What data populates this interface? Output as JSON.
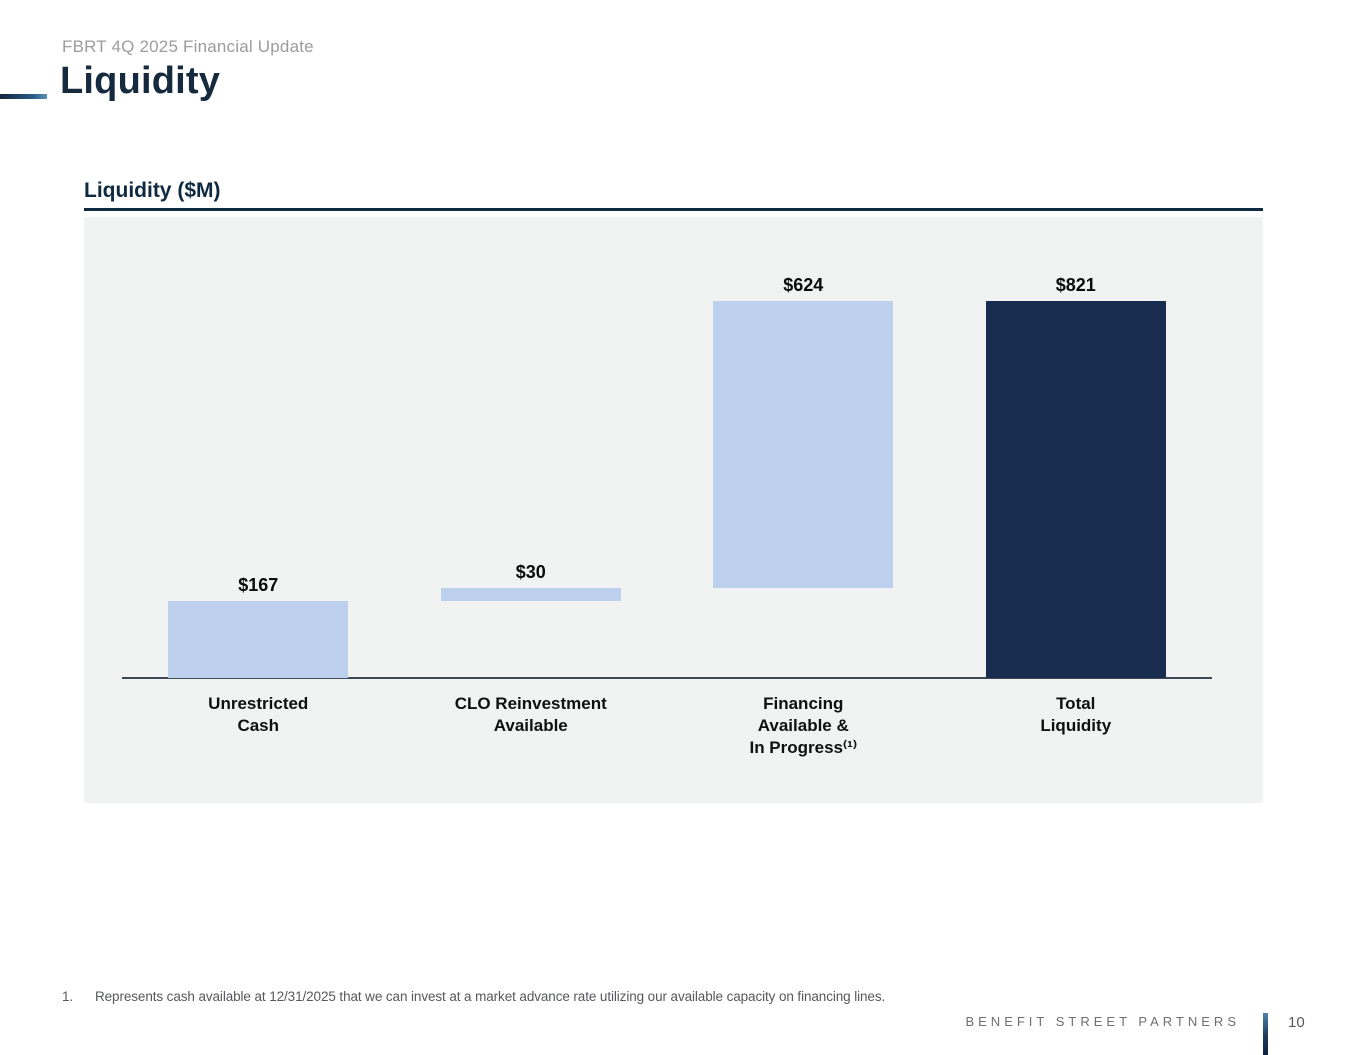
{
  "header": {
    "eyebrow": "FBRT 4Q 2025 Financial Update",
    "title": "Liquidity"
  },
  "chart_data": {
    "type": "bar",
    "subtype": "waterfall",
    "title": "Liquidity ($M)",
    "categories": [
      "Unrestricted Cash",
      "CLO Reinvestment Available",
      "Financing Available & In Progress (1)",
      "Total Liquidity"
    ],
    "category_lines": [
      [
        "Unrestricted",
        "Cash"
      ],
      [
        "CLO Reinvestment",
        "Available"
      ],
      [
        "Financing",
        "Available &",
        "In Progress⁽¹⁾"
      ],
      [
        "Total",
        "Liquidity"
      ]
    ],
    "slugs": [
      "unrestricted-cash",
      "clo-reinvestment-available",
      "financing-available-in-progress",
      "total-liquidity"
    ],
    "values": [
      167,
      30,
      624,
      821
    ],
    "value_labels": [
      "$167",
      "$30",
      "$624",
      "$821"
    ],
    "segments": [
      [
        0,
        167
      ],
      [
        167,
        197
      ],
      [
        197,
        821
      ],
      [
        0,
        821
      ]
    ],
    "bar_colors": [
      "#bdd1ee",
      "#bdd1ee",
      "#bdd1ee",
      "#182c4f"
    ],
    "accent_color": "#0f2940",
    "plot_background": "#f1f2f2",
    "ylim": [
      0,
      1000
    ],
    "grid": false,
    "legend": false,
    "value_axis_hidden": true
  },
  "footnote": {
    "number": "1.",
    "text": "Represents cash available at 12/31/2025 that we can invest at a market advance rate utilizing our available capacity on financing lines."
  },
  "footer": {
    "brand": "BENEFIT STREET PARTNERS",
    "page": "10"
  }
}
